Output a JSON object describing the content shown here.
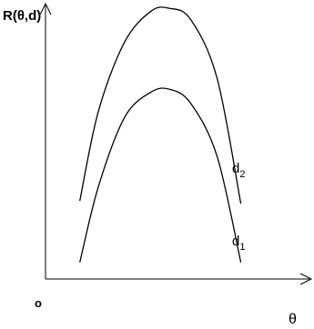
{
  "chart_data": {
    "type": "line",
    "title": "",
    "ylabel": "R(θ,d)",
    "xlabel": "θ",
    "origin_label": "o",
    "xlim": [
      0,
      1
    ],
    "ylim": [
      0,
      1
    ],
    "grid": false,
    "legend": "none",
    "series": [
      {
        "name": "d2",
        "label_main": "d",
        "label_sub": "2",
        "x": [
          0.13,
          0.2,
          0.3,
          0.4,
          0.47,
          0.55,
          0.65,
          0.74
        ],
        "y": [
          0.28,
          0.6,
          0.85,
          0.96,
          0.97,
          0.93,
          0.72,
          0.27
        ]
      },
      {
        "name": "d1",
        "label_main": "d",
        "label_sub": "1",
        "x": [
          0.13,
          0.2,
          0.3,
          0.4,
          0.47,
          0.55,
          0.65,
          0.74
        ],
        "y": [
          0.06,
          0.33,
          0.58,
          0.67,
          0.68,
          0.63,
          0.44,
          0.06
        ]
      }
    ],
    "colors": {
      "line": "#000000",
      "background": "#ffffff"
    }
  }
}
